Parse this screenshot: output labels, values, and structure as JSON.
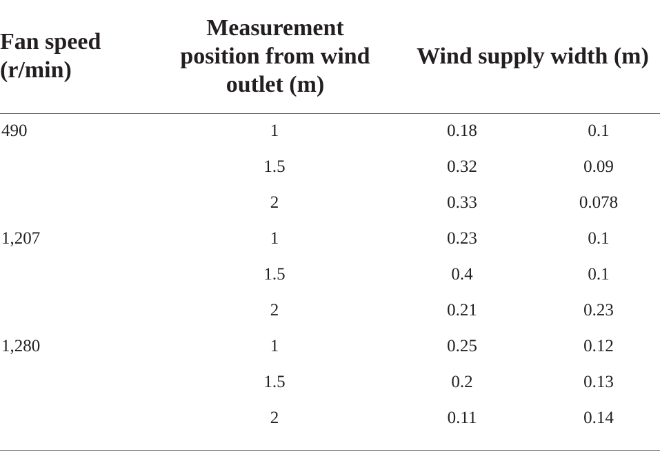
{
  "table": {
    "headers": {
      "fan_speed": "Fan speed (r/min)",
      "position": "Measurement position from wind outlet (m)",
      "width": "Wind supply width (m)"
    },
    "rows": [
      {
        "fan_speed": "490",
        "position": "1",
        "width_a": "0.18",
        "width_b": "0.1"
      },
      {
        "fan_speed": "",
        "position": "1.5",
        "width_a": "0.32",
        "width_b": "0.09"
      },
      {
        "fan_speed": "",
        "position": "2",
        "width_a": "0.33",
        "width_b": "0.078"
      },
      {
        "fan_speed": "1,207",
        "position": "1",
        "width_a": "0.23",
        "width_b": "0.1"
      },
      {
        "fan_speed": "",
        "position": "1.5",
        "width_a": "0.4",
        "width_b": "0.1"
      },
      {
        "fan_speed": "",
        "position": "2",
        "width_a": "0.21",
        "width_b": "0.23"
      },
      {
        "fan_speed": "1,280",
        "position": "1",
        "width_a": "0.25",
        "width_b": "0.12"
      },
      {
        "fan_speed": "",
        "position": "1.5",
        "width_a": "0.2",
        "width_b": "0.13"
      },
      {
        "fan_speed": "",
        "position": "2",
        "width_a": "0.11",
        "width_b": "0.14"
      }
    ]
  }
}
